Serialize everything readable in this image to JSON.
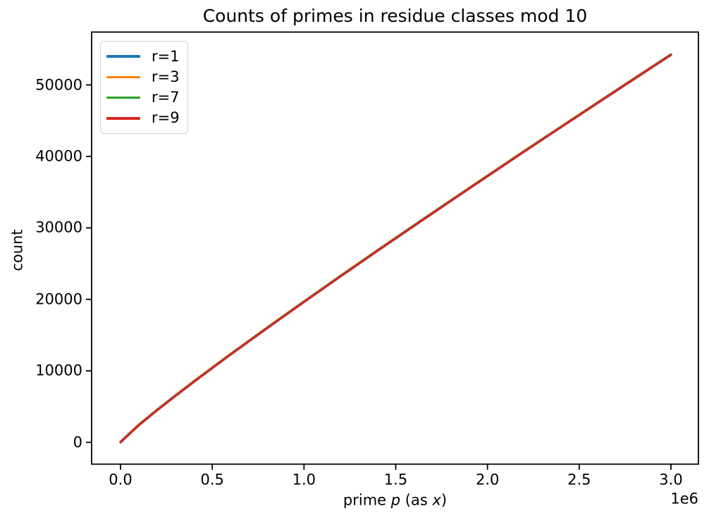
{
  "figure": {
    "background": "#ffffff",
    "text_color": "#000000"
  },
  "chart_data": {
    "type": "line",
    "title": "Counts of primes in residue classes mod 10",
    "xlabel": "prime p (as x)",
    "xlabel_parts": {
      "before": "prime ",
      "italic_p": "p",
      "middle": " (as ",
      "italic_x": "x",
      "after": ")"
    },
    "ylabel": "count",
    "x_offset_label": "1e6",
    "grid": false,
    "legend_position": "upper left",
    "xlim": [
      -150000,
      3150000
    ],
    "ylim": [
      -3000,
      57400
    ],
    "xticks": {
      "values": [
        0,
        500000,
        1000000,
        1500000,
        2000000,
        2500000,
        3000000
      ],
      "labels": [
        "0.0",
        "0.5",
        "1.0",
        "1.5",
        "2.0",
        "2.5",
        "3.0"
      ]
    },
    "yticks": {
      "values": [
        0,
        10000,
        20000,
        30000,
        40000,
        50000
      ],
      "labels": [
        "0",
        "10000",
        "20000",
        "30000",
        "40000",
        "50000"
      ]
    },
    "x": [
      0,
      100000,
      200000,
      300000,
      400000,
      500000,
      600000,
      700000,
      800000,
      900000,
      1000000,
      1200000,
      1400000,
      1600000,
      1800000,
      2000000,
      2200000,
      2400000,
      2600000,
      2800000,
      3000000
    ],
    "series": [
      {
        "label": "r=1",
        "color": "#1f77b4",
        "values": [
          0,
          2398,
          4496,
          6499,
          8465,
          10385,
          12275,
          14136,
          15988,
          17819,
          19625,
          23235,
          26782,
          30282,
          33768,
          37233,
          40666,
          44076,
          47470,
          50841,
          54204
        ]
      },
      {
        "label": "r=3",
        "color": "#ff7f0e",
        "values": [
          0,
          2398,
          4496,
          6499,
          8465,
          10385,
          12275,
          14136,
          15988,
          17819,
          19625,
          23235,
          26782,
          30282,
          33768,
          37233,
          40666,
          44076,
          47470,
          50841,
          54204
        ]
      },
      {
        "label": "r=7",
        "color": "#2ca02c",
        "values": [
          0,
          2398,
          4496,
          6499,
          8465,
          10385,
          12275,
          14136,
          15988,
          17819,
          19625,
          23235,
          26782,
          30282,
          33768,
          37233,
          40666,
          44076,
          47470,
          50841,
          54204
        ]
      },
      {
        "label": "r=9",
        "color": "#d62728",
        "values": [
          0,
          2398,
          4496,
          6499,
          8465,
          10385,
          12275,
          14136,
          15988,
          17819,
          19625,
          23235,
          26782,
          30282,
          33768,
          37233,
          40666,
          44076,
          47470,
          50841,
          54204
        ]
      }
    ]
  }
}
